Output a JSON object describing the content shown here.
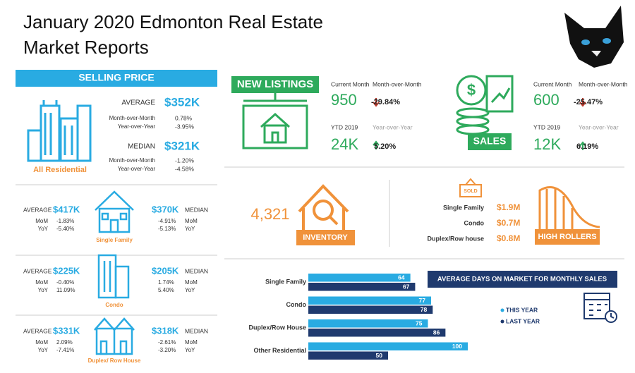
{
  "header": {
    "title_line1": "January 2020 Edmonton Real Estate",
    "title_line2": "Market Reports"
  },
  "selling_price": {
    "heading": "SELLING PRICE",
    "all_residential": {
      "label": "All Residential",
      "average_label": "AVERAGE",
      "average": "$352K",
      "average_rows": [
        {
          "label": "Month-over-Month",
          "value": "0.78%"
        },
        {
          "label": "Year-over-Year",
          "value": "-3.95%"
        }
      ],
      "median_label": "MEDIAN",
      "median": "$321K",
      "median_rows": [
        {
          "label": "Month-over-Month",
          "value": "-1.20%"
        },
        {
          "label": "Year-over-Year",
          "value": "-4.58%"
        }
      ]
    },
    "types": [
      {
        "label": "Single Family",
        "average_label": "AVERAGE",
        "average": "$417K",
        "average_rows": [
          {
            "label": "MoM",
            "value": "-1.83%"
          },
          {
            "label": "YoY",
            "value": "-5.40%"
          }
        ],
        "median_label": "MEDIAN",
        "median": "$370K",
        "median_rows": [
          {
            "label": "MoM",
            "value": "-4.91%"
          },
          {
            "label": "YoY",
            "value": "-5.13%"
          }
        ]
      },
      {
        "label": "Condo",
        "average_label": "AVERAGE",
        "average": "$225K",
        "average_rows": [
          {
            "label": "MoM",
            "value": "-0.40%"
          },
          {
            "label": "YoY",
            "value": "11.09%"
          }
        ],
        "median_label": "MEDIAN",
        "median": "$205K",
        "median_rows": [
          {
            "label": "MoM",
            "value": "1.74%"
          },
          {
            "label": "YoY",
            "value": "5.40%"
          }
        ]
      },
      {
        "label": "Duplex/ Row House",
        "average_label": "AVERAGE",
        "average": "$331K",
        "average_rows": [
          {
            "label": "MoM",
            "value": "2.09%"
          },
          {
            "label": "YoY",
            "value": "-7.41%"
          }
        ],
        "median_label": "MEDIAN",
        "median": "$318K",
        "median_rows": [
          {
            "label": "MoM",
            "value": "-2.61%"
          },
          {
            "label": "YoY",
            "value": "-3.20%"
          }
        ]
      }
    ]
  },
  "new_listings": {
    "heading": "NEW LISTINGS",
    "current_label": "Current Month",
    "current": "950",
    "mom_label": "Month-over-Month",
    "mom": "-29.84%",
    "ytd_label": "YTD 2019",
    "ytd": "24K",
    "yoy_label": "Year-over-Year",
    "yoy": "5.20%"
  },
  "sales": {
    "heading": "SALES",
    "current_label": "Current Month",
    "current": "600",
    "mom_label": "Month-over-Month",
    "mom": "-25.47%",
    "ytd_label": "YTD 2019",
    "ytd": "12K",
    "yoy_label": "Year-over-Year",
    "yoy": "6.19%"
  },
  "inventory": {
    "value": "4,321",
    "label": "INVENTORY"
  },
  "high_rollers": {
    "sign": "SOLD",
    "label": "HIGH ROLLERS",
    "rows": [
      {
        "label": "Single Family",
        "value": "$1.9M"
      },
      {
        "label": "Condo",
        "value": "$0.7M"
      },
      {
        "label": "Duplex/Row house",
        "value": "$0.8M"
      }
    ]
  },
  "chart_data": {
    "type": "bar",
    "title": "AVERAGE DAYS ON MARKET FOR MONTHLY SALES",
    "categories": [
      "Single Family",
      "Condo",
      "Duplex/Row House",
      "Other Residential"
    ],
    "series": [
      {
        "name": "THIS YEAR",
        "color": "#29abe2",
        "values": [
          64,
          77,
          75,
          100
        ]
      },
      {
        "name": "LAST YEAR",
        "color": "#1f3a6e",
        "values": [
          67,
          78,
          86,
          50
        ]
      }
    ]
  }
}
